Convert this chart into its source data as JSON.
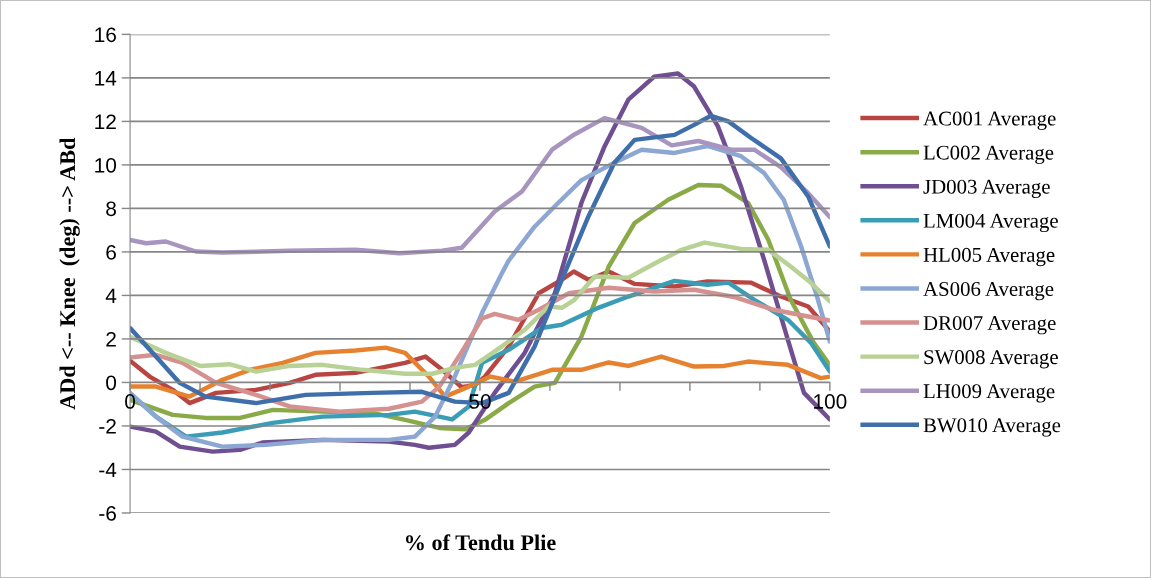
{
  "chart_data": {
    "type": "line",
    "xlabel": "% of Tendu Plie",
    "ylabel": "ADd <-- Knee  (deg) --> ABd",
    "xlim": [
      0,
      100
    ],
    "xticks": [
      0,
      {
        "value": 10,
        "label": null
      },
      {
        "value": 20,
        "label": null
      },
      {
        "value": 30,
        "label": null
      },
      {
        "value": 40,
        "label": null
      },
      50,
      {
        "value": 60,
        "label": null
      },
      {
        "value": 70,
        "label": null
      },
      {
        "value": 80,
        "label": null
      },
      {
        "value": 90,
        "label": null
      },
      100
    ],
    "ylim": [
      -6,
      16
    ],
    "yticks": [
      -6,
      -4,
      -2,
      0,
      2,
      4,
      6,
      8,
      10,
      12,
      14,
      16
    ],
    "grid": "y",
    "legend": "right",
    "marker": "none",
    "line_style": "solid",
    "series": [
      {
        "name": "AC001 Average",
        "color": "#b84542",
        "x": [
          0,
          2.8,
          6.1,
          8.5,
          12.3,
          18,
          22.8,
          26.5,
          32.2,
          39.3,
          42.2,
          44.6,
          47.4,
          49.3,
          50.7,
          54.1,
          58.4,
          61.7,
          63.4,
          65.5,
          68.4,
          72.1,
          77.8,
          82.5,
          88.7,
          93,
          96.9,
          100
        ],
        "values": [
          1.0,
          0.27,
          -0.34,
          -0.95,
          -0.48,
          -0.34,
          -0.02,
          0.35,
          0.44,
          0.9,
          1.19,
          0.58,
          -0.22,
          -0.11,
          0.27,
          1.65,
          4.1,
          4.72,
          5.1,
          4.72,
          5.1,
          4.53,
          4.41,
          4.64,
          4.59,
          3.95,
          3.49,
          2.34
        ]
      },
      {
        "name": "LC002 Average",
        "color": "#8aaa48",
        "x": [
          0,
          6.1,
          10.8,
          15.7,
          20.4,
          27.5,
          34.6,
          39.3,
          44.2,
          47.9,
          50.7,
          54.1,
          57.8,
          60.7,
          64.5,
          68.4,
          72.1,
          76.9,
          81.2,
          84.5,
          88.3,
          91.2,
          94.4,
          97.7,
          100
        ],
        "values": [
          -0.8,
          -1.49,
          -1.63,
          -1.63,
          -1.26,
          -1.34,
          -1.4,
          -1.72,
          -2.09,
          -2.15,
          -1.72,
          -0.95,
          -0.19,
          -0.02,
          2.11,
          5.33,
          7.33,
          8.4,
          9.08,
          9.04,
          8.26,
          6.56,
          3.8,
          1.82,
          0.8
        ]
      },
      {
        "name": "JD003 Average",
        "color": "#6f4f91",
        "x": [
          0,
          3.7,
          7.1,
          11.8,
          15.7,
          18.9,
          27.5,
          37,
          40.7,
          42.7,
          46.4,
          48.4,
          52.1,
          56.4,
          60.7,
          64.5,
          67.8,
          71.2,
          74.9,
          78.3,
          80.6,
          84,
          87.3,
          90.6,
          94,
          96.3,
          100
        ],
        "values": [
          -2.03,
          -2.26,
          -2.95,
          -3.18,
          -3.1,
          -2.76,
          -2.64,
          -2.72,
          -2.87,
          -3.0,
          -2.87,
          -2.3,
          -0.48,
          1.36,
          4.1,
          8.26,
          10.85,
          13.0,
          14.06,
          14.2,
          13.6,
          11.77,
          9.0,
          5.64,
          1.96,
          -0.48,
          -1.7
        ]
      },
      {
        "name": "LM004 Average",
        "color": "#3b9db5",
        "x": [
          0,
          3.7,
          8,
          13.2,
          20.4,
          27.5,
          37,
          40.7,
          44.2,
          46,
          48.4,
          50.3,
          54.1,
          58.8,
          61.7,
          66.9,
          71.2,
          77.8,
          82.5,
          85.5,
          89.2,
          94,
          97.3,
          100
        ],
        "values": [
          -0.5,
          -1.57,
          -2.49,
          -2.3,
          -1.86,
          -1.57,
          -1.49,
          -1.34,
          -1.57,
          -1.7,
          -1.1,
          0.9,
          1.5,
          2.5,
          2.65,
          3.43,
          3.95,
          4.67,
          4.49,
          4.59,
          3.8,
          2.88,
          1.82,
          0.5
        ]
      },
      {
        "name": "HL005 Average",
        "color": "#e6822f",
        "x": [
          0,
          3.7,
          8.5,
          13.2,
          17.1,
          21.8,
          26.5,
          32.2,
          36.5,
          39.3,
          42.7,
          45,
          48.4,
          51.5,
          55,
          60.3,
          64.5,
          68.4,
          71.2,
          75.9,
          80.6,
          84.9,
          88.3,
          94,
          98.7,
          100
        ],
        "values": [
          -0.19,
          -0.19,
          -0.65,
          0.12,
          0.58,
          0.9,
          1.36,
          1.47,
          1.6,
          1.36,
          0.27,
          -0.65,
          -0.19,
          0.27,
          0.04,
          0.58,
          0.58,
          0.92,
          0.76,
          1.19,
          0.73,
          0.76,
          0.96,
          0.81,
          0.2,
          0.27
        ]
      },
      {
        "name": "AS006 Average",
        "color": "#8da7d3",
        "x": [
          0,
          3.7,
          7.5,
          13.2,
          19.4,
          27.5,
          37,
          40.7,
          43.6,
          46.4,
          50.3,
          53.1,
          54.1,
          57.8,
          60.7,
          64.5,
          69.2,
          73.1,
          77.8,
          82.5,
          87.3,
          90.6,
          93.4,
          95.9,
          98.3,
          100
        ],
        "values": [
          -0.48,
          -1.57,
          -2.49,
          -2.95,
          -2.87,
          -2.64,
          -2.64,
          -2.49,
          -1.57,
          0.27,
          3.2,
          5.0,
          5.6,
          7.16,
          8.1,
          9.3,
          10.1,
          10.7,
          10.55,
          10.87,
          10.4,
          9.63,
          8.4,
          6.25,
          3.8,
          1.88
        ]
      },
      {
        "name": "DR007 Average",
        "color": "#d59190",
        "x": [
          0,
          3.7,
          7.5,
          12.3,
          18,
          22.8,
          29.9,
          37,
          41.7,
          44.2,
          47.4,
          50.3,
          52.1,
          55.5,
          58.4,
          62.7,
          68.4,
          74.9,
          80.6,
          86.3,
          92,
          96.9,
          100
        ],
        "values": [
          1.15,
          1.27,
          0.9,
          -0.02,
          -0.57,
          -1.1,
          -1.34,
          -1.21,
          -0.88,
          -0.19,
          1.4,
          2.95,
          3.15,
          2.88,
          3.34,
          4.1,
          4.35,
          4.18,
          4.26,
          3.93,
          3.34,
          3.03,
          2.85
        ]
      },
      {
        "name": "SW008 Average",
        "color": "#b8d194",
        "x": [
          0,
          5.1,
          10,
          14.2,
          18,
          22.8,
          27.5,
          33.2,
          39.3,
          43.2,
          46.4,
          49.3,
          53.1,
          56.4,
          59.8,
          61.7,
          63.5,
          66.4,
          71.2,
          75.5,
          78.8,
          82.1,
          87.3,
          91.2,
          94.4,
          97.3,
          100
        ],
        "values": [
          2.1,
          1.36,
          0.76,
          0.84,
          0.5,
          0.76,
          0.81,
          0.58,
          0.4,
          0.4,
          0.67,
          0.81,
          1.65,
          2.42,
          3.49,
          3.43,
          3.8,
          4.87,
          4.81,
          5.56,
          6.1,
          6.43,
          6.14,
          6.1,
          5.33,
          4.58,
          3.72
        ]
      },
      {
        "name": "LH009 Average",
        "color": "#a895bf",
        "x": [
          0,
          2.3,
          5.1,
          9.4,
          13.2,
          22.8,
          32.2,
          38.5,
          44.6,
          47.4,
          52.1,
          56,
          60.3,
          63.5,
          67.8,
          73.1,
          77.4,
          81.2,
          85.9,
          89.2,
          93,
          96.9,
          100
        ],
        "values": [
          6.55,
          6.4,
          6.48,
          6.02,
          5.97,
          6.05,
          6.1,
          5.94,
          6.06,
          6.19,
          7.86,
          8.78,
          10.7,
          11.4,
          12.15,
          11.7,
          10.9,
          11.1,
          10.7,
          10.7,
          9.9,
          8.7,
          7.6
        ]
      },
      {
        "name": "BW010 Average",
        "color": "#3f6fab",
        "x": [
          0,
          3.7,
          7.1,
          10.8,
          18,
          25.1,
          34.6,
          41.7,
          46.4,
          50.3,
          54.1,
          57.8,
          61.7,
          65.5,
          69.2,
          72.1,
          77.8,
          80.6,
          83,
          85.5,
          88.7,
          93,
          96.9,
          100
        ],
        "values": [
          2.5,
          1.19,
          -0.02,
          -0.65,
          -0.95,
          -0.57,
          -0.48,
          -0.43,
          -0.88,
          -0.95,
          -0.48,
          1.65,
          4.72,
          7.63,
          10.1,
          11.15,
          11.38,
          11.84,
          12.26,
          12.0,
          11.25,
          10.3,
          8.55,
          6.25
        ]
      }
    ]
  }
}
